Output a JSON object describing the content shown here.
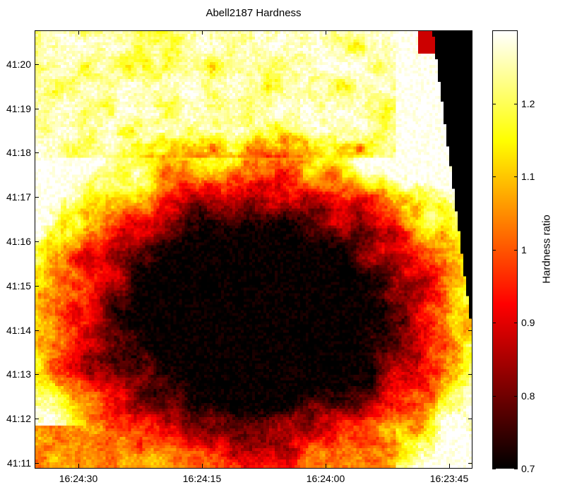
{
  "chart_data": {
    "type": "heatmap",
    "title": "Abell2187 Hardness",
    "xlabel": "",
    "ylabel": "",
    "x_ticks": [
      "16:24:30",
      "16:24:15",
      "16:24:00",
      "16:23:45"
    ],
    "y_ticks": [
      "41:11",
      "41:12",
      "41:13",
      "41:14",
      "41:15",
      "41:16",
      "41:17",
      "41:18",
      "41:19",
      "41:20"
    ],
    "colorbar": {
      "label": "Hardness ratio",
      "range": [
        0.7,
        1.3
      ],
      "ticks": [
        "0.7",
        "0.8",
        "0.9",
        "1",
        "1.1",
        "1.2"
      ],
      "colormap": "hot",
      "colors": [
        "#000000",
        "#ff0000",
        "#ffff00",
        "#ffffff"
      ]
    },
    "grid": false
  }
}
